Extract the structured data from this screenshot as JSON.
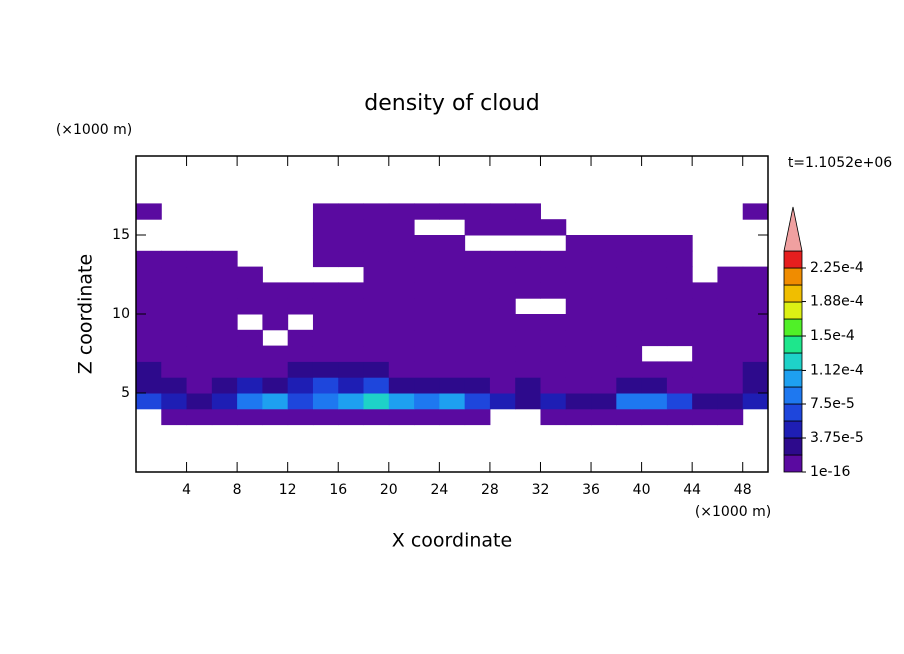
{
  "chart_data": {
    "type": "contour",
    "title": "density of cloud",
    "x_label": "X coordinate",
    "y_label": "Z coordinate",
    "x_unit": "(×1000 m)",
    "y_unit": "(×1000 m)",
    "time_label": "t=1.1052e+06",
    "xlim": [
      0,
      50
    ],
    "ylim": [
      0,
      20
    ],
    "xticks": [
      4,
      8,
      12,
      16,
      20,
      24,
      28,
      32,
      36,
      40,
      44,
      48
    ],
    "yticks": [
      5,
      10,
      15
    ],
    "x": [
      1,
      3,
      5,
      7,
      9,
      11,
      13,
      15,
      17,
      19,
      21,
      23,
      25,
      27,
      29,
      31,
      33,
      35,
      37,
      39,
      41,
      43,
      45,
      47,
      49
    ],
    "y": [
      3.5,
      4.5,
      5.5,
      6.5,
      7.5,
      8.5,
      9.5,
      10.5,
      11.5,
      12.5,
      13.5,
      14.5,
      15.5,
      16.5
    ],
    "z": [
      [
        null,
        1e-16,
        1e-16,
        1e-16,
        1e-16,
        1e-16,
        1e-16,
        1e-16,
        1e-16,
        1e-16,
        1e-16,
        1e-16,
        1e-16,
        1e-16,
        null,
        null,
        1e-16,
        1e-16,
        1e-16,
        1e-16,
        1e-16,
        1e-16,
        1e-16,
        1e-16,
        null
      ],
      [
        6e-05,
        4e-05,
        2e-05,
        4e-05,
        8e-05,
        0.0001,
        6e-05,
        8e-05,
        0.0001,
        0.00012,
        0.0001,
        8e-05,
        0.0001,
        6e-05,
        4e-05,
        2e-05,
        4e-05,
        2e-05,
        2e-05,
        8e-05,
        8e-05,
        6e-05,
        2e-05,
        2e-05,
        4e-05
      ],
      [
        2e-05,
        2e-05,
        1e-16,
        2e-05,
        4e-05,
        2e-05,
        4e-05,
        6e-05,
        4e-05,
        6e-05,
        2e-05,
        2e-05,
        2e-05,
        2e-05,
        1e-16,
        2e-05,
        1e-16,
        1e-16,
        1e-16,
        2e-05,
        2e-05,
        1e-16,
        1e-16,
        1e-16,
        2e-05
      ],
      [
        2e-05,
        1e-16,
        1e-16,
        1e-16,
        1e-16,
        1e-16,
        2e-05,
        2e-05,
        2e-05,
        2e-05,
        1e-16,
        1e-16,
        1e-16,
        1e-16,
        1e-16,
        1e-16,
        1e-16,
        1e-16,
        1e-16,
        1e-16,
        1e-16,
        1e-16,
        1e-16,
        1e-16,
        2e-05
      ],
      [
        1e-16,
        1e-16,
        1e-16,
        1e-16,
        1e-16,
        1e-16,
        1e-16,
        1e-16,
        1e-16,
        1e-16,
        1e-16,
        1e-16,
        1e-16,
        1e-16,
        1e-16,
        1e-16,
        1e-16,
        1e-16,
        1e-16,
        1e-16,
        null,
        null,
        1e-16,
        1e-16,
        1e-16
      ],
      [
        1e-16,
        1e-16,
        1e-16,
        1e-16,
        1e-16,
        null,
        1e-16,
        1e-16,
        1e-16,
        1e-16,
        1e-16,
        1e-16,
        1e-16,
        1e-16,
        1e-16,
        1e-16,
        1e-16,
        1e-16,
        1e-16,
        1e-16,
        1e-16,
        1e-16,
        1e-16,
        1e-16,
        1e-16
      ],
      [
        1e-16,
        1e-16,
        1e-16,
        1e-16,
        null,
        1e-16,
        null,
        1e-16,
        1e-16,
        1e-16,
        1e-16,
        1e-16,
        1e-16,
        1e-16,
        1e-16,
        1e-16,
        1e-16,
        1e-16,
        1e-16,
        1e-16,
        1e-16,
        1e-16,
        1e-16,
        1e-16,
        1e-16
      ],
      [
        1e-16,
        1e-16,
        1e-16,
        1e-16,
        1e-16,
        1e-16,
        1e-16,
        1e-16,
        1e-16,
        1e-16,
        1e-16,
        1e-16,
        1e-16,
        1e-16,
        1e-16,
        null,
        null,
        1e-16,
        1e-16,
        1e-16,
        1e-16,
        1e-16,
        1e-16,
        1e-16,
        1e-16
      ],
      [
        1e-16,
        1e-16,
        1e-16,
        1e-16,
        1e-16,
        1e-16,
        1e-16,
        1e-16,
        1e-16,
        1e-16,
        1e-16,
        1e-16,
        1e-16,
        1e-16,
        1e-16,
        1e-16,
        1e-16,
        1e-16,
        1e-16,
        1e-16,
        1e-16,
        1e-16,
        1e-16,
        1e-16,
        1e-16
      ],
      [
        1e-16,
        1e-16,
        1e-16,
        1e-16,
        1e-16,
        null,
        null,
        null,
        null,
        1e-16,
        1e-16,
        1e-16,
        1e-16,
        1e-16,
        1e-16,
        1e-16,
        1e-16,
        1e-16,
        1e-16,
        1e-16,
        1e-16,
        1e-16,
        null,
        1e-16,
        1e-16
      ],
      [
        1e-16,
        1e-16,
        1e-16,
        1e-16,
        null,
        null,
        null,
        1e-16,
        1e-16,
        1e-16,
        1e-16,
        1e-16,
        1e-16,
        1e-16,
        1e-16,
        1e-16,
        1e-16,
        1e-16,
        1e-16,
        1e-16,
        1e-16,
        1e-16,
        null,
        null,
        null
      ],
      [
        null,
        null,
        null,
        null,
        null,
        null,
        null,
        1e-16,
        1e-16,
        1e-16,
        1e-16,
        1e-16,
        1e-16,
        null,
        null,
        null,
        null,
        1e-16,
        1e-16,
        1e-16,
        1e-16,
        1e-16,
        null,
        null,
        null
      ],
      [
        null,
        null,
        null,
        null,
        null,
        null,
        null,
        1e-16,
        1e-16,
        1e-16,
        1e-16,
        null,
        null,
        1e-16,
        1e-16,
        1e-16,
        1e-16,
        null,
        null,
        null,
        null,
        null,
        null,
        null,
        null
      ],
      [
        1e-16,
        null,
        null,
        null,
        null,
        null,
        null,
        1e-16,
        1e-16,
        1e-16,
        1e-16,
        1e-16,
        1e-16,
        1e-16,
        1e-16,
        1e-16,
        null,
        null,
        null,
        null,
        null,
        null,
        null,
        null,
        1e-16
      ]
    ],
    "colorbar": {
      "levels": [
        1e-16,
        1.875e-05,
        3.75e-05,
        5.625e-05,
        7.5e-05,
        9.375e-05,
        0.0001125,
        0.00013125,
        0.00015,
        0.00016875,
        0.0001875,
        0.00020625,
        0.000225,
        0.00024375
      ],
      "colors": [
        "#5a0aa0",
        "#2d0a8c",
        "#1e1eb4",
        "#1e46dc",
        "#1e78f0",
        "#1ea0f0",
        "#1ed2c8",
        "#1ee68c",
        "#50f028",
        "#dcf014",
        "#f0be00",
        "#f08c00",
        "#e61e1e"
      ],
      "extend_color": "#f0a0a0",
      "ticks": [
        1e-16,
        {
          "value": 3.75e-05,
          "label": "3.75e-5"
        },
        {
          "value": 7.5e-05,
          "label": "7.5e-5"
        },
        {
          "value": 0.000112,
          "label": "1.12e-4"
        },
        {
          "value": 0.00015,
          "label": "1.5e-4"
        },
        {
          "value": 0.000188,
          "label": "1.88e-4"
        },
        {
          "value": 0.000225,
          "label": "2.25e-4"
        }
      ]
    }
  }
}
